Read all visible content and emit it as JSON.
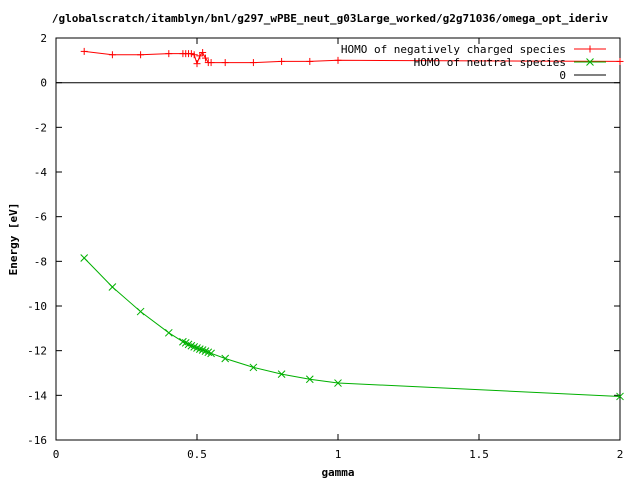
{
  "chart_data": {
    "type": "line",
    "title": "/globalscratch/itamblyn/bnl/g297_wPBE_neut_g03Large_worked/g2g71036/omega_opt_ideriv",
    "xlabel": "gamma",
    "ylabel": "Energy [eV]",
    "xlim": [
      0,
      2
    ],
    "ylim": [
      -16,
      2
    ],
    "xticks": [
      0,
      0.5,
      1,
      1.5,
      2
    ],
    "xtick_labels": [
      "0",
      "0.5",
      "1",
      "1.5",
      "2"
    ],
    "yticks": [
      2,
      0,
      -2,
      -4,
      -6,
      -8,
      -10,
      -12,
      -14,
      -16
    ],
    "ytick_labels": [
      "2",
      "0",
      "-2",
      "-4",
      "-6",
      "-8",
      "-10",
      "-12",
      "-14",
      "-16"
    ],
    "grid": false,
    "legend_position": "top-right",
    "series": [
      {
        "name": "HOMO of negatively charged species",
        "color": "#ff0000",
        "marker": "plus",
        "x": [
          0.1,
          0.2,
          0.3,
          0.4,
          0.45,
          0.46,
          0.47,
          0.48,
          0.49,
          0.5,
          0.51,
          0.52,
          0.53,
          0.54,
          0.55,
          0.6,
          0.7,
          0.8,
          0.9,
          1.0,
          2.0
        ],
        "y": [
          1.4,
          1.25,
          1.25,
          1.3,
          1.3,
          1.3,
          1.3,
          1.3,
          1.25,
          0.85,
          1.2,
          1.35,
          1.1,
          0.9,
          0.9,
          0.9,
          0.9,
          0.95,
          0.95,
          1.0,
          0.95
        ]
      },
      {
        "name": "HOMO of neutral species",
        "color": "#00b000",
        "marker": "cross",
        "x": [
          0.1,
          0.2,
          0.3,
          0.4,
          0.45,
          0.46,
          0.47,
          0.48,
          0.49,
          0.5,
          0.51,
          0.52,
          0.53,
          0.54,
          0.55,
          0.6,
          0.7,
          0.8,
          0.9,
          1.0,
          2.0
        ],
        "y": [
          -7.85,
          -9.15,
          -10.25,
          -11.2,
          -11.6,
          -11.65,
          -11.72,
          -11.78,
          -11.83,
          -11.88,
          -11.93,
          -11.97,
          -12.02,
          -12.07,
          -12.12,
          -12.35,
          -12.75,
          -13.05,
          -13.28,
          -13.45,
          -14.05
        ]
      },
      {
        "name": "0",
        "color": "#000000",
        "marker": "none",
        "x": [
          0,
          2
        ],
        "y": [
          0,
          0
        ]
      }
    ]
  }
}
